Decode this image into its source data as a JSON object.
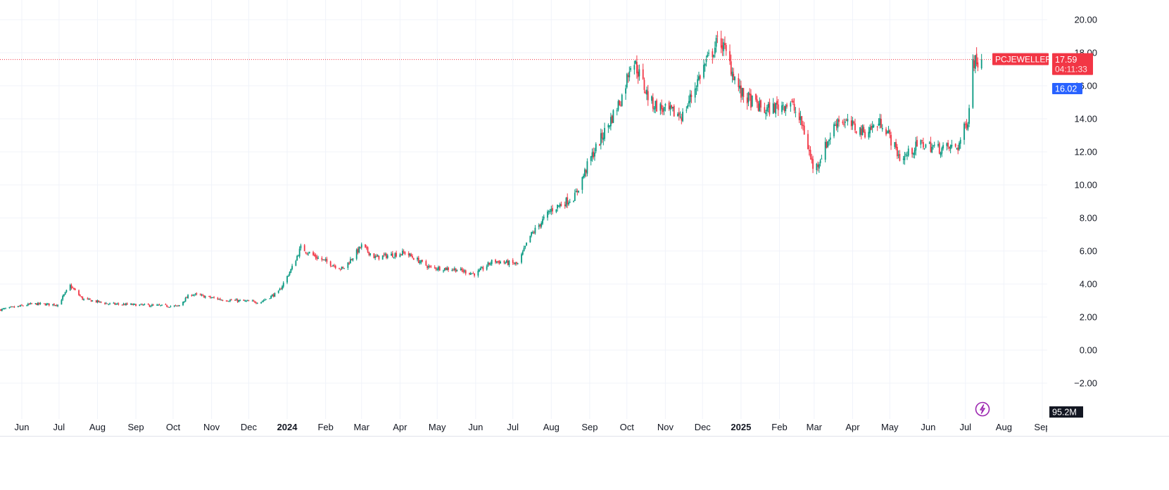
{
  "chart_data": {
    "type": "candlestick",
    "symbol": "PCJEWELLER",
    "y_ticks": [
      "20.00",
      "18.00",
      "16.00",
      "14.00",
      "12.00",
      "10.00",
      "8.00",
      "6.00",
      "4.00",
      "2.00",
      "0.00",
      "−2.00"
    ],
    "y_range": [
      -2.6,
      20.6
    ],
    "x_ticks": [
      {
        "label": "Jun",
        "date": "2023-06-01",
        "bold": false
      },
      {
        "label": "Jul",
        "date": "2023-07-01",
        "bold": false
      },
      {
        "label": "Aug",
        "date": "2023-08-01",
        "bold": false
      },
      {
        "label": "Sep",
        "date": "2023-09-01",
        "bold": false
      },
      {
        "label": "Oct",
        "date": "2023-10-01",
        "bold": false
      },
      {
        "label": "Nov",
        "date": "2023-11-01",
        "bold": false
      },
      {
        "label": "Dec",
        "date": "2023-12-01",
        "bold": false
      },
      {
        "label": "2024",
        "date": "2024-01-01",
        "bold": true
      },
      {
        "label": "Feb",
        "date": "2024-02-01",
        "bold": false
      },
      {
        "label": "Mar",
        "date": "2024-03-01",
        "bold": false
      },
      {
        "label": "Apr",
        "date": "2024-04-01",
        "bold": false
      },
      {
        "label": "May",
        "date": "2024-05-01",
        "bold": false
      },
      {
        "label": "Jun",
        "date": "2024-06-01",
        "bold": false
      },
      {
        "label": "Jul",
        "date": "2024-07-01",
        "bold": false
      },
      {
        "label": "Aug",
        "date": "2024-08-01",
        "bold": false
      },
      {
        "label": "Sep",
        "date": "2024-09-01",
        "bold": false
      },
      {
        "label": "Oct",
        "date": "2024-10-01",
        "bold": false
      },
      {
        "label": "Nov",
        "date": "2024-11-01",
        "bold": false
      },
      {
        "label": "Dec",
        "date": "2024-12-01",
        "bold": false
      },
      {
        "label": "2025",
        "date": "2025-01-01",
        "bold": true
      },
      {
        "label": "Feb",
        "date": "2025-02-01",
        "bold": false
      },
      {
        "label": "Mar",
        "date": "2025-03-01",
        "bold": false
      },
      {
        "label": "Apr",
        "date": "2025-04-01",
        "bold": false
      },
      {
        "label": "May",
        "date": "2025-05-01",
        "bold": false
      },
      {
        "label": "Jun",
        "date": "2025-06-01",
        "bold": false
      },
      {
        "label": "Jul",
        "date": "2025-07-01",
        "bold": false
      },
      {
        "label": "Aug",
        "date": "2025-08-01",
        "bold": false
      },
      {
        "label": "Sep",
        "date": "2025-09-01",
        "bold": false
      }
    ],
    "price_path": [
      {
        "date": "2023-05-15",
        "close": 2.45
      },
      {
        "date": "2023-06-10",
        "close": 2.8
      },
      {
        "date": "2023-06-30",
        "close": 2.75
      },
      {
        "date": "2023-07-10",
        "close": 3.9
      },
      {
        "date": "2023-07-20",
        "close": 3.1
      },
      {
        "date": "2023-08-10",
        "close": 2.8
      },
      {
        "date": "2023-09-15",
        "close": 2.7
      },
      {
        "date": "2023-10-05",
        "close": 2.65
      },
      {
        "date": "2023-10-15",
        "close": 3.4
      },
      {
        "date": "2023-11-10",
        "close": 3.05
      },
      {
        "date": "2023-12-10",
        "close": 2.9
      },
      {
        "date": "2023-12-25",
        "close": 3.5
      },
      {
        "date": "2024-01-05",
        "close": 5.0
      },
      {
        "date": "2024-01-12",
        "close": 6.2
      },
      {
        "date": "2024-01-25",
        "close": 5.6
      },
      {
        "date": "2024-02-15",
        "close": 4.9
      },
      {
        "date": "2024-03-01",
        "close": 6.3
      },
      {
        "date": "2024-03-12",
        "close": 5.6
      },
      {
        "date": "2024-04-05",
        "close": 5.9
      },
      {
        "date": "2024-04-25",
        "close": 5.0
      },
      {
        "date": "2024-05-15",
        "close": 4.9
      },
      {
        "date": "2024-06-01",
        "close": 4.6
      },
      {
        "date": "2024-06-15",
        "close": 5.4
      },
      {
        "date": "2024-07-05",
        "close": 5.2
      },
      {
        "date": "2024-07-15",
        "close": 6.9
      },
      {
        "date": "2024-08-01",
        "close": 8.5
      },
      {
        "date": "2024-08-20",
        "close": 9.3
      },
      {
        "date": "2024-09-01",
        "close": 11.5
      },
      {
        "date": "2024-09-15",
        "close": 13.5
      },
      {
        "date": "2024-09-28",
        "close": 15.5
      },
      {
        "date": "2024-10-05",
        "close": 17.8
      },
      {
        "date": "2024-10-20",
        "close": 15.0
      },
      {
        "date": "2024-11-01",
        "close": 14.5
      },
      {
        "date": "2024-11-15",
        "close": 14.2
      },
      {
        "date": "2024-12-01",
        "close": 17.0
      },
      {
        "date": "2024-12-15",
        "close": 18.9
      },
      {
        "date": "2025-01-01",
        "close": 15.5
      },
      {
        "date": "2025-01-20",
        "close": 14.5
      },
      {
        "date": "2025-02-10",
        "close": 15.0
      },
      {
        "date": "2025-02-20",
        "close": 13.5
      },
      {
        "date": "2025-03-01",
        "close": 10.8
      },
      {
        "date": "2025-03-20",
        "close": 14.0
      },
      {
        "date": "2025-04-10",
        "close": 13.2
      },
      {
        "date": "2025-04-25",
        "close": 13.8
      },
      {
        "date": "2025-05-10",
        "close": 11.5
      },
      {
        "date": "2025-05-25",
        "close": 12.5
      },
      {
        "date": "2025-06-10",
        "close": 12.2
      },
      {
        "date": "2025-06-25",
        "close": 12.3
      },
      {
        "date": "2025-07-03",
        "close": 14.0
      },
      {
        "date": "2025-07-07",
        "close": 17.5
      },
      {
        "date": "2025-07-14",
        "close": 17.59
      }
    ],
    "last_price": {
      "label": "PCJEWELLER",
      "value": "17.59",
      "countdown": "04:11:33",
      "price": 17.59
    },
    "marker_price": {
      "value": "16.02",
      "price": 16.02
    },
    "volume_label": "95.2M",
    "colors": {
      "up": "#089981",
      "down": "#f23645",
      "marker": "#2962ff",
      "grid": "#f0f3fa",
      "axis_text": "#131722",
      "lightning": "#9c27b0"
    },
    "grid": true
  }
}
